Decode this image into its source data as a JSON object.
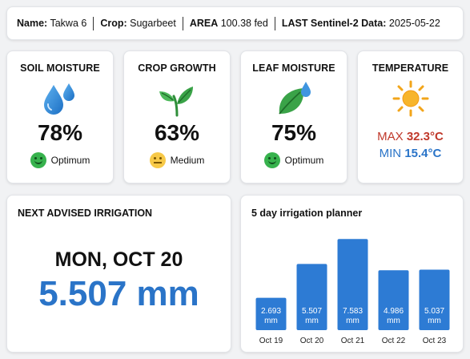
{
  "header": {
    "name_label": "Name:",
    "name_value": "Takwa 6",
    "crop_label": "Crop:",
    "crop_value": "Sugarbeet",
    "area_label": "AREA",
    "area_value": "100.38 fed",
    "sentinel_label": "LAST Sentinel-2 Data:",
    "sentinel_value": "2025-05-22"
  },
  "metrics": [
    {
      "title": "SOIL MOISTURE",
      "value": "78%",
      "status": "Optimum",
      "icon": "water-drops-icon",
      "status_icon": "smile-green-icon"
    },
    {
      "title": "CROP GROWTH",
      "value": "63%",
      "status": "Medium",
      "icon": "sprout-icon",
      "status_icon": "neutral-yellow-icon"
    },
    {
      "title": "LEAF MOISTURE",
      "value": "75%",
      "status": "Optimum",
      "icon": "leaf-drop-icon",
      "status_icon": "smile-green-icon"
    }
  ],
  "temperature": {
    "title": "TEMPERATURE",
    "icon": "sun-icon",
    "max_label": "MAX",
    "max_value": "32.3°C",
    "min_label": "MIN",
    "min_value": "15.4°C"
  },
  "irrigation": {
    "title": "NEXT ADVISED IRRIGATION",
    "date": "MON, OCT 20",
    "amount": "5.507 mm"
  },
  "planner": {
    "title": "5 day irrigation planner"
  },
  "chart_data": {
    "type": "bar",
    "title": "5 day irrigation planner",
    "categories": [
      "Oct 19",
      "Oct 20",
      "Oct 21",
      "Oct 22",
      "Oct 23"
    ],
    "values": [
      2.693,
      5.507,
      7.583,
      4.986,
      5.037
    ],
    "value_labels": [
      "2.693",
      "5.507",
      "7.583",
      "4.986",
      "5.037"
    ],
    "unit": "mm",
    "ylim": [
      0,
      8
    ],
    "grid": false,
    "bar_color": "#2d7bd4"
  },
  "colors": {
    "accent_blue": "#2a74c8",
    "max_red": "#c0392b",
    "status_green": "#37b24d",
    "status_yellow": "#f7c948"
  }
}
